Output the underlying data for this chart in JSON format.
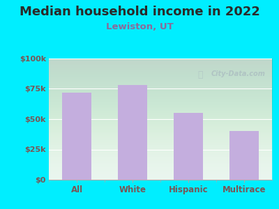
{
  "title": "Median household income in 2022",
  "subtitle": "Lewiston, UT",
  "categories": [
    "All",
    "White",
    "Hispanic",
    "Multirace"
  ],
  "values": [
    72000,
    78000,
    55000,
    40000
  ],
  "bar_color": "#c4aede",
  "ylim": [
    0,
    100000
  ],
  "yticks": [
    0,
    25000,
    50000,
    75000,
    100000
  ],
  "ytick_labels": [
    "$0",
    "$25k",
    "$50k",
    "$75k",
    "$100k"
  ],
  "background_outer": "#00eeff",
  "title_fontsize": 13,
  "subtitle_fontsize": 9.5,
  "title_color": "#2a2a2a",
  "subtitle_color": "#8a6a9a",
  "tick_color": "#7a5555",
  "watermark": "City-Data.com",
  "watermark_color": "#aabbc0",
  "plot_bg_color": "#e8f5ee",
  "grid_color": "#ffffff"
}
